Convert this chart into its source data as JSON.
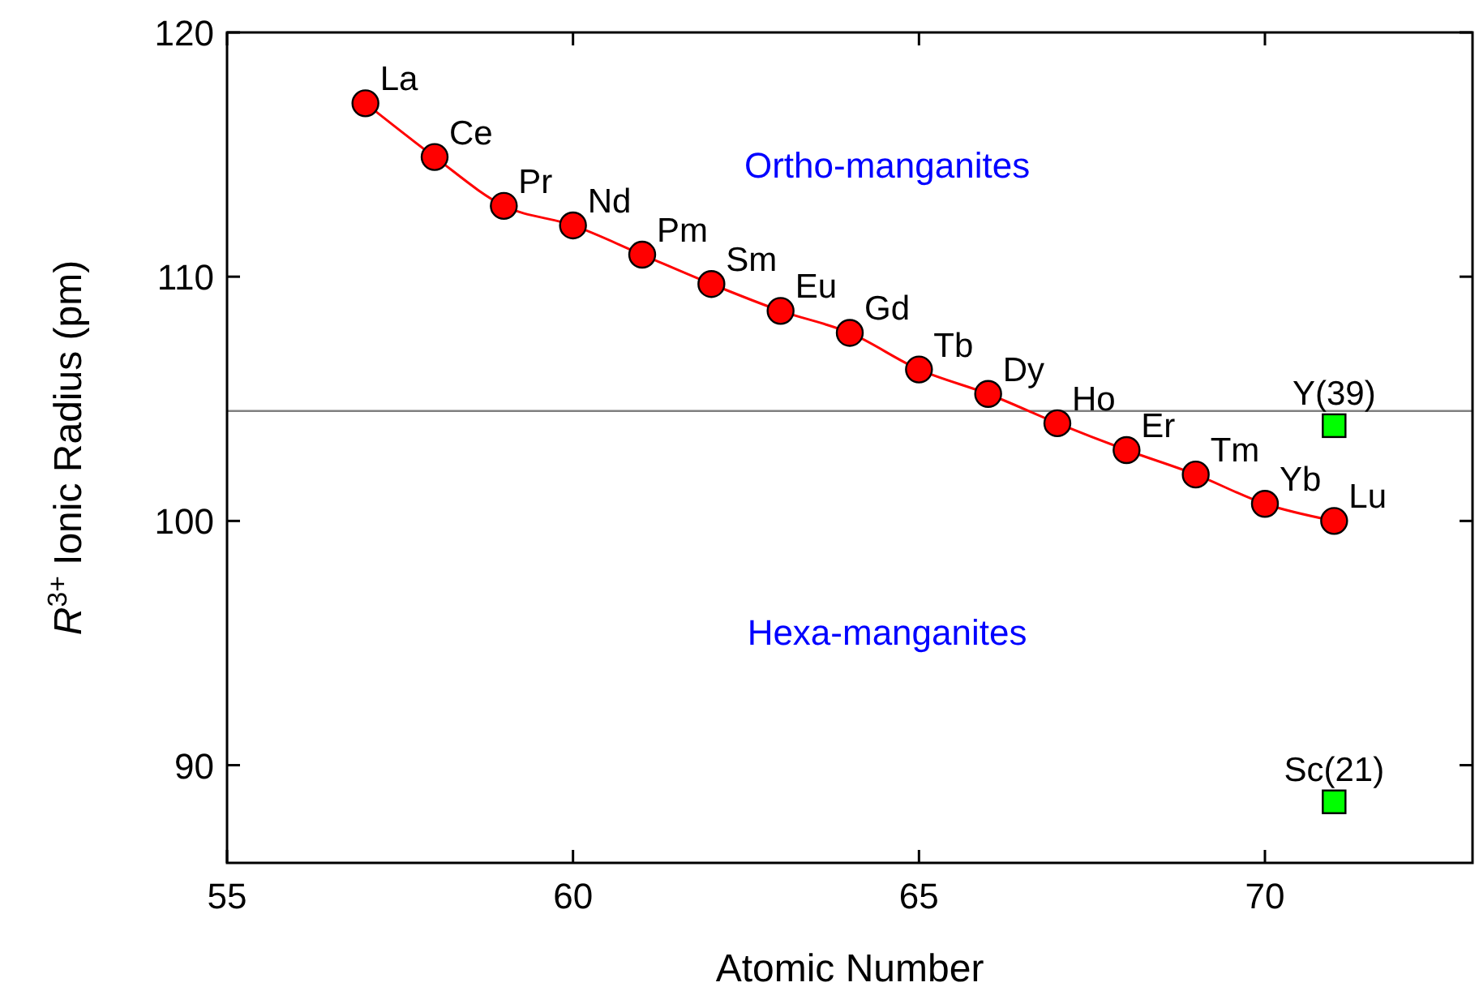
{
  "chart_data": {
    "type": "line",
    "xlabel": "Atomic Number",
    "ylabel": "R$^{3+}$ Ionic  Radius (pm)",
    "xlim": [
      55,
      73
    ],
    "xticks": [
      55,
      60,
      65,
      70
    ],
    "ylim": [
      86,
      120
    ],
    "yticks": [
      90,
      100,
      110,
      120
    ],
    "grid": false,
    "series": [
      {
        "marker": "circle",
        "color": "#ff0000",
        "x": [
          57,
          58,
          59,
          60,
          61,
          62,
          63,
          64,
          65,
          66,
          67,
          68,
          69,
          70,
          71
        ],
        "values": [
          117.1,
          114.9,
          112.9,
          112.1,
          110.9,
          109.7,
          108.6,
          107.7,
          106.2,
          105.2,
          104.0,
          102.9,
          101.9,
          100.7,
          100.0
        ]
      },
      {
        "type": "scatter",
        "marker": "square",
        "color": "#00ff00",
        "x": [
          71,
          71
        ],
        "values": [
          103.9,
          88.5
        ]
      }
    ],
    "ref_lines": [
      {
        "axis": "y",
        "value": 104.5,
        "color": "#808080"
      }
    ],
    "annotations": [
      "Ortho-manganites",
      "Hexa-manganites",
      {
        "text": "La",
        "x": 57,
        "y": 117.1
      },
      {
        "text": "Ce",
        "x": 58,
        "y": 114.9
      },
      {
        "text": "Pr",
        "x": 59,
        "y": 112.9
      },
      {
        "text": "Nd",
        "x": 60,
        "y": 112.1
      },
      {
        "text": "Pm",
        "x": 61,
        "y": 110.9
      },
      {
        "text": "Sm",
        "x": 62,
        "y": 109.7
      },
      {
        "text": "Eu",
        "x": 63,
        "y": 108.6
      },
      {
        "text": "Gd",
        "x": 64,
        "y": 107.7
      },
      {
        "text": "Tb",
        "x": 65,
        "y": 106.2
      },
      {
        "text": "Dy",
        "x": 66,
        "y": 105.2
      },
      {
        "text": "Ho",
        "x": 67,
        "y": 104.0
      },
      {
        "text": "Er",
        "x": 68,
        "y": 102.9
      },
      {
        "text": "Tm",
        "x": 69,
        "y": 101.9
      },
      {
        "text": "Yb",
        "x": 70,
        "y": 100.7
      },
      {
        "text": "Lu",
        "x": 71,
        "y": 100.0
      },
      {
        "text": "Y(39)",
        "x": 71,
        "y": 103.9
      },
      {
        "text": "Sc(21)",
        "x": 71,
        "y": 88.5
      }
    ]
  }
}
